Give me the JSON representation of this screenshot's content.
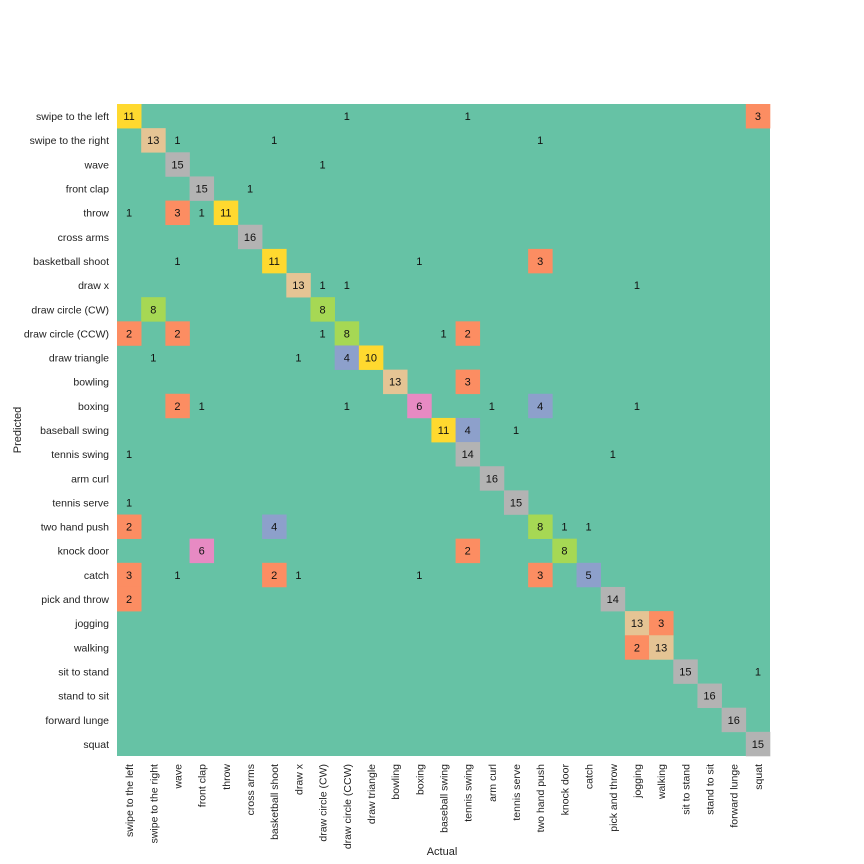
{
  "chart_data": {
    "type": "heatmap",
    "title": "",
    "xlabel": "Actual",
    "ylabel": "Predicted",
    "categories": [
      "swipe to the left",
      "swipe to the right",
      "wave",
      "front clap",
      "throw",
      "cross arms",
      "basketball shoot",
      "draw x",
      "draw circle (CW)",
      "draw circle (CCW)",
      "draw triangle",
      "bowling",
      "boxing",
      "baseball swing",
      "tennis swing",
      "arm curl",
      "tennis serve",
      "two hand push",
      "knock door",
      "catch",
      "pick and throw",
      "jogging",
      "walking",
      "sit to stand",
      "stand to sit",
      "forward lunge",
      "squat"
    ],
    "background_color": "#66c2a5",
    "color_scale": {
      "1": "#66c2a5",
      "2": "#fc8d62",
      "3": "#fc8d62",
      "4": "#8da0cb",
      "5": "#8da0cb",
      "6": "#e78ac3",
      "8": "#a6d854",
      "10": "#ffd92f",
      "11": "#ffd92f",
      "13": "#e5c494",
      "14": "#b3b3b3",
      "15": "#b3b3b3",
      "16": "#b3b3b3"
    },
    "cells": [
      [
        0,
        0,
        11
      ],
      [
        0,
        9,
        1
      ],
      [
        0,
        14,
        1
      ],
      [
        0,
        26,
        3
      ],
      [
        1,
        1,
        13
      ],
      [
        1,
        2,
        1
      ],
      [
        1,
        6,
        1
      ],
      [
        1,
        17,
        1
      ],
      [
        2,
        2,
        15
      ],
      [
        2,
        8,
        1
      ],
      [
        3,
        3,
        15
      ],
      [
        3,
        5,
        1
      ],
      [
        4,
        0,
        1
      ],
      [
        4,
        2,
        3
      ],
      [
        4,
        3,
        1
      ],
      [
        4,
        4,
        11
      ],
      [
        5,
        5,
        16
      ],
      [
        6,
        2,
        1
      ],
      [
        6,
        6,
        11
      ],
      [
        6,
        12,
        1
      ],
      [
        6,
        17,
        3
      ],
      [
        7,
        7,
        13
      ],
      [
        7,
        8,
        1
      ],
      [
        7,
        9,
        1
      ],
      [
        7,
        21,
        1
      ],
      [
        8,
        1,
        8
      ],
      [
        8,
        8,
        8
      ],
      [
        9,
        0,
        2
      ],
      [
        9,
        2,
        2
      ],
      [
        9,
        8,
        1
      ],
      [
        9,
        9,
        8
      ],
      [
        9,
        13,
        1
      ],
      [
        9,
        14,
        2
      ],
      [
        10,
        1,
        1
      ],
      [
        10,
        7,
        1
      ],
      [
        10,
        9,
        4
      ],
      [
        10,
        10,
        10
      ],
      [
        11,
        11,
        13
      ],
      [
        11,
        14,
        3
      ],
      [
        12,
        2,
        2
      ],
      [
        12,
        3,
        1
      ],
      [
        12,
        9,
        1
      ],
      [
        12,
        12,
        6
      ],
      [
        12,
        15,
        1
      ],
      [
        12,
        17,
        4
      ],
      [
        12,
        21,
        1
      ],
      [
        13,
        13,
        11
      ],
      [
        13,
        14,
        4
      ],
      [
        13,
        16,
        1
      ],
      [
        14,
        0,
        1
      ],
      [
        14,
        14,
        14
      ],
      [
        14,
        20,
        1
      ],
      [
        15,
        15,
        16
      ],
      [
        16,
        0,
        1
      ],
      [
        16,
        16,
        15
      ],
      [
        17,
        0,
        2
      ],
      [
        17,
        6,
        4
      ],
      [
        17,
        17,
        8
      ],
      [
        17,
        18,
        1
      ],
      [
        17,
        19,
        1
      ],
      [
        18,
        3,
        6
      ],
      [
        18,
        14,
        2
      ],
      [
        18,
        18,
        8
      ],
      [
        19,
        0,
        3
      ],
      [
        19,
        2,
        1
      ],
      [
        19,
        6,
        2
      ],
      [
        19,
        7,
        1
      ],
      [
        19,
        12,
        1
      ],
      [
        19,
        17,
        3
      ],
      [
        19,
        19,
        5
      ],
      [
        20,
        0,
        2
      ],
      [
        20,
        20,
        14
      ],
      [
        21,
        21,
        13
      ],
      [
        21,
        22,
        3
      ],
      [
        22,
        21,
        2
      ],
      [
        22,
        22,
        13
      ],
      [
        23,
        23,
        15
      ],
      [
        23,
        26,
        1
      ],
      [
        24,
        24,
        16
      ],
      [
        25,
        25,
        16
      ],
      [
        26,
        26,
        15
      ]
    ]
  }
}
